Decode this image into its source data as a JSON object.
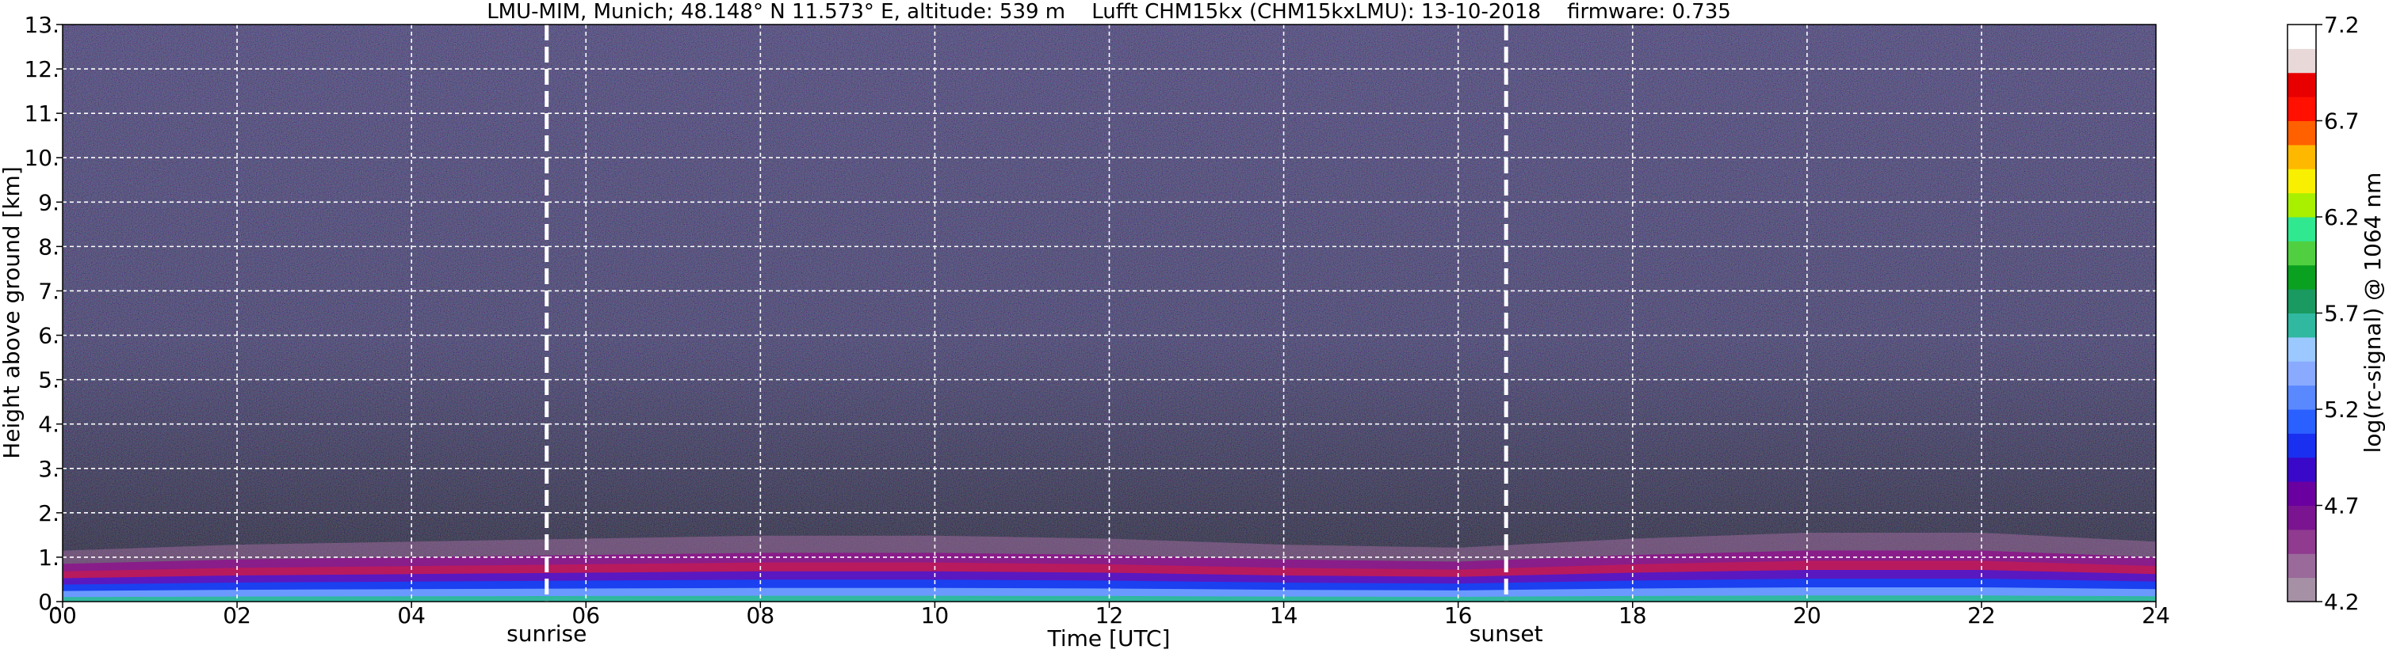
{
  "chart_data": {
    "type": "heatmap",
    "title": "LMU-MIM, Munich; 48.148° N 11.573° E, altitude: 539 m    Lufft CHM15kx (CHM15kxLMU): 13-10-2018    firmware: 0.735",
    "xlabel": "Time [UTC]",
    "ylabel": "Height above ground [km]",
    "colorbar_label": "log(rc-signal) @ 1064 nm",
    "xlim": [
      0,
      24
    ],
    "ylim": [
      0,
      13
    ],
    "x_ticks": [
      0,
      2,
      4,
      6,
      8,
      10,
      12,
      14,
      16,
      18,
      20,
      22,
      24
    ],
    "x_tick_labels": [
      "00",
      "02",
      "04",
      "06",
      "08",
      "10",
      "12",
      "14",
      "16",
      "18",
      "20",
      "22",
      "24"
    ],
    "y_ticks": [
      0,
      1,
      2,
      3,
      4,
      5,
      6,
      7,
      8,
      9,
      10,
      11,
      12,
      13
    ],
    "y_tick_labels": [
      "0.",
      "1.",
      "2.",
      "3.",
      "4.",
      "5.",
      "6.",
      "7.",
      "8.",
      "9.",
      "10.",
      "11.",
      "12.",
      "13."
    ],
    "grid": true,
    "colorbar_range": [
      4.2,
      7.2
    ],
    "colorbar_ticks": [
      4.2,
      4.7,
      5.2,
      5.7,
      6.2,
      6.7,
      7.2
    ],
    "colorbar_tick_labels": [
      "4.2",
      "4.7",
      "5.2",
      "5.7",
      "6.2",
      "6.7",
      "7.2"
    ],
    "colormap": [
      "#a590a5",
      "#9a6a9a",
      "#903a90",
      "#7a1490",
      "#6a00a0",
      "#3a08c8",
      "#1a30f0",
      "#2a60ff",
      "#5a88ff",
      "#8aaaff",
      "#9ac8ff",
      "#30b8a0",
      "#1a9a60",
      "#0aa020",
      "#50d040",
      "#30e890",
      "#a8f000",
      "#f8f000",
      "#ffb800",
      "#ff6000",
      "#ff1000",
      "#e80000",
      "#e8d8d8",
      "#ffffff"
    ],
    "markers": [
      {
        "label": "sunrise",
        "x": 5.55
      },
      {
        "label": "sunset",
        "x": 16.55
      }
    ],
    "layers": {
      "boundary_layer_top_km": [
        0.85,
        0.95,
        1.0,
        1.05,
        1.1,
        1.1,
        1.05,
        0.95,
        0.9,
        1.05,
        1.15,
        1.15,
        1.0
      ],
      "noise_region_km": [
        1.0,
        13.0
      ]
    }
  }
}
